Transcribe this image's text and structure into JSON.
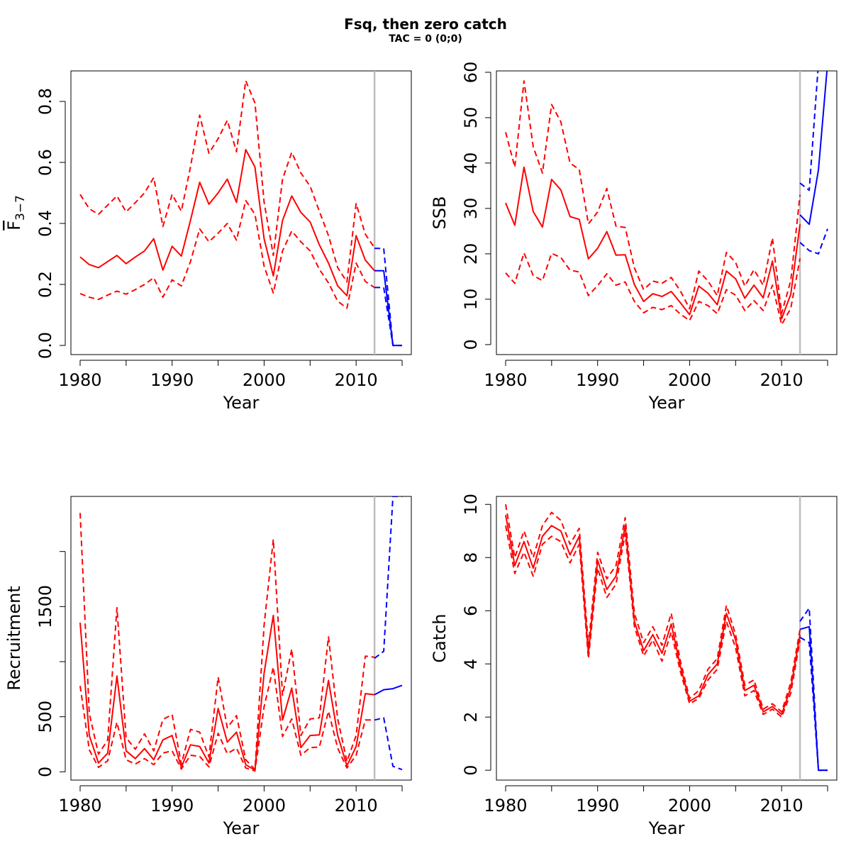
{
  "figure": {
    "title": "Fsq, then zero catch",
    "subtitle": "TAC = 0 (0;0)"
  },
  "colors": {
    "historic": "#ff0000",
    "forecast": "#0000ff",
    "assessment_line": "#bebebe"
  },
  "chart_data": [
    {
      "id": "fbar",
      "type": "line",
      "xlabel": "Year",
      "ylabel": "F3-7",
      "ylabel_main": "F",
      "ylabel_sub": "3−7",
      "xlim": [
        1979,
        2016
      ],
      "ylim": [
        -0.03,
        0.9
      ],
      "xticks": [
        1980,
        1990,
        2000,
        2010
      ],
      "xminor": [
        1985,
        1995,
        2005,
        2015
      ],
      "yticks": [
        0.0,
        0.2,
        0.4,
        0.6,
        0.8
      ],
      "ytick_labels": [
        "0.0",
        "0.2",
        "0.4",
        "0.6",
        "0.8"
      ],
      "vline": 2012,
      "historic": {
        "x": [
          1980,
          1981,
          1982,
          1983,
          1984,
          1985,
          1986,
          1987,
          1988,
          1989,
          1990,
          1991,
          1992,
          1993,
          1994,
          1995,
          1996,
          1997,
          1998,
          1999,
          2000,
          2001,
          2002,
          2003,
          2004,
          2005,
          2006,
          2007,
          2008,
          2009,
          2010,
          2011,
          2012
        ],
        "est": [
          0.29,
          0.265,
          0.255,
          0.275,
          0.295,
          0.268,
          0.29,
          0.31,
          0.35,
          0.247,
          0.325,
          0.293,
          0.41,
          0.535,
          0.463,
          0.5,
          0.545,
          0.469,
          0.642,
          0.585,
          0.35,
          0.228,
          0.41,
          0.49,
          0.436,
          0.405,
          0.33,
          0.27,
          0.195,
          0.163,
          0.36,
          0.28,
          0.245
        ],
        "low": [
          0.17,
          0.158,
          0.151,
          0.165,
          0.178,
          0.168,
          0.183,
          0.2,
          0.222,
          0.158,
          0.215,
          0.195,
          0.275,
          0.382,
          0.34,
          0.368,
          0.4,
          0.345,
          0.475,
          0.43,
          0.26,
          0.172,
          0.31,
          0.375,
          0.34,
          0.31,
          0.25,
          0.205,
          0.145,
          0.122,
          0.27,
          0.21,
          0.19
        ],
        "high": [
          0.495,
          0.448,
          0.43,
          0.46,
          0.49,
          0.438,
          0.468,
          0.5,
          0.55,
          0.39,
          0.495,
          0.44,
          0.585,
          0.755,
          0.63,
          0.678,
          0.738,
          0.635,
          0.868,
          0.795,
          0.47,
          0.295,
          0.545,
          0.633,
          0.565,
          0.522,
          0.44,
          0.36,
          0.255,
          0.208,
          0.465,
          0.365,
          0.32
        ]
      },
      "forecast": {
        "x": [
          2012,
          2013,
          2014,
          2015
        ],
        "est": [
          0.245,
          0.245,
          0.0,
          0.0
        ],
        "low": [
          0.19,
          0.19,
          0.0,
          0.0
        ],
        "high": [
          0.318,
          0.318,
          0.0,
          0.0
        ]
      }
    },
    {
      "id": "ssb",
      "type": "line",
      "xlabel": "Year",
      "ylabel": "SSB",
      "xlim": [
        1979,
        2016
      ],
      "ylim": [
        -2.2,
        60.3
      ],
      "xticks": [
        1980,
        1990,
        2000,
        2010
      ],
      "xminor": [
        1985,
        1995,
        2005,
        2015
      ],
      "yticks": [
        0,
        10,
        20,
        30,
        40,
        50,
        60
      ],
      "ytick_labels": [
        "0",
        "10",
        "20",
        "30",
        "40",
        "50",
        "60"
      ],
      "vline": 2012,
      "historic": {
        "x": [
          1980,
          1981,
          1982,
          1983,
          1984,
          1985,
          1986,
          1987,
          1988,
          1989,
          1990,
          1991,
          1992,
          1993,
          1994,
          1995,
          1996,
          1997,
          1998,
          1999,
          2000,
          2001,
          2002,
          2003,
          2004,
          2005,
          2006,
          2007,
          2008,
          2009,
          2010,
          2011,
          2012
        ],
        "est": [
          31.2,
          26.3,
          39.1,
          29.3,
          25.9,
          36.4,
          34.1,
          28.2,
          27.6,
          18.9,
          21.2,
          24.9,
          19.7,
          19.8,
          13.2,
          9.5,
          11.2,
          10.6,
          11.7,
          9.2,
          6.6,
          12.9,
          11.3,
          8.8,
          16.2,
          14.5,
          10.2,
          13.1,
          10.3,
          18.4,
          5.7,
          11.1,
          26.5
        ],
        "low": [
          15.8,
          13.5,
          20.2,
          15.2,
          14.1,
          20.1,
          19.2,
          16.4,
          16.0,
          10.8,
          13.0,
          15.6,
          13.1,
          13.8,
          9.5,
          7.0,
          8.2,
          7.7,
          8.6,
          6.7,
          5.3,
          9.5,
          8.6,
          6.8,
          12.1,
          10.9,
          7.5,
          9.7,
          7.5,
          13.1,
          4.4,
          8.0,
          19.0
        ],
        "high": [
          46.8,
          39.1,
          58.1,
          43.6,
          37.8,
          52.9,
          49.1,
          40.0,
          38.6,
          26.6,
          29.2,
          34.4,
          26.1,
          25.8,
          16.9,
          12.1,
          14.0,
          13.5,
          14.8,
          11.8,
          7.9,
          16.2,
          14.0,
          10.8,
          20.3,
          18.1,
          12.9,
          16.5,
          13.1,
          23.5,
          6.9,
          14.1,
          33.0
        ]
      },
      "forecast": {
        "x": [
          2012,
          2013,
          2014,
          2015
        ],
        "est": [
          28.6,
          26.5,
          38.5,
          62.0
        ],
        "low": [
          22.5,
          20.7,
          20.0,
          25.5
        ],
        "high": [
          35.6,
          34.0,
          62.0,
          62.0
        ]
      }
    },
    {
      "id": "recruitment",
      "type": "line",
      "xlabel": "Year",
      "ylabel": "Recruitment",
      "xlim": [
        1979,
        2016
      ],
      "ylim": [
        -75,
        2500
      ],
      "xticks": [
        1980,
        1990,
        2000,
        2010
      ],
      "xminor": [
        1985,
        1995,
        2005,
        2015
      ],
      "yticks": [
        0,
        500,
        1000,
        1500,
        2000
      ],
      "ytick_labels": [
        "0",
        "500",
        "",
        "1500",
        ""
      ],
      "vline": 2012,
      "historic": {
        "x": [
          1980,
          1981,
          1982,
          1983,
          1984,
          1985,
          1986,
          1987,
          1988,
          1989,
          1990,
          1991,
          1992,
          1993,
          1994,
          1995,
          1996,
          1997,
          1998,
          1999,
          2000,
          2001,
          2002,
          2003,
          2004,
          2005,
          2006,
          2007,
          2008,
          2009,
          2010,
          2011,
          2012
        ],
        "est": [
          1355,
          330,
          80,
          170,
          870,
          190,
          120,
          210,
          110,
          290,
          330,
          40,
          245,
          230,
          80,
          575,
          270,
          360,
          65,
          15,
          895,
          1420,
          470,
          760,
          220,
          330,
          335,
          830,
          330,
          55,
          230,
          710,
          700
        ],
        "low": [
          780,
          200,
          40,
          100,
          450,
          110,
          70,
          120,
          65,
          170,
          190,
          25,
          150,
          140,
          45,
          350,
          165,
          215,
          35,
          8,
          590,
          950,
          320,
          480,
          150,
          220,
          225,
          550,
          215,
          35,
          150,
          470,
          470
        ],
        "high": [
          2350,
          530,
          160,
          290,
          1490,
          310,
          205,
          345,
          190,
          475,
          520,
          70,
          385,
          360,
          135,
          860,
          400,
          510,
          110,
          20,
          1330,
          2110,
          695,
          1115,
          330,
          480,
          490,
          1225,
          480,
          95,
          330,
          1050,
          1040
        ]
      },
      "forecast": {
        "x": [
          2012,
          2013,
          2014,
          2015
        ],
        "est": [
          700,
          745,
          755,
          785
        ],
        "low": [
          470,
          490,
          50,
          20
        ],
        "high": [
          1030,
          1095,
          2500,
          2500
        ]
      }
    },
    {
      "id": "catch",
      "type": "line",
      "xlabel": "Year",
      "ylabel": "Catch",
      "xlim": [
        1979,
        2016
      ],
      "ylim": [
        -0.37,
        10.3
      ],
      "xticks": [
        1980,
        1990,
        2000,
        2010
      ],
      "xminor": [
        1985,
        1995,
        2005,
        2015
      ],
      "yticks": [
        0,
        2,
        4,
        6,
        8,
        10
      ],
      "ytick_labels": [
        "0",
        "2",
        "4",
        "6",
        "8",
        "10"
      ],
      "vline": 2012,
      "historic": {
        "x": [
          1980,
          1981,
          1982,
          1983,
          1984,
          1985,
          1986,
          1987,
          1988,
          1989,
          1990,
          1991,
          1992,
          1993,
          1994,
          1995,
          1996,
          1997,
          1998,
          1999,
          2000,
          2001,
          2002,
          2003,
          2004,
          2005,
          2006,
          2007,
          2008,
          2009,
          2010,
          2011,
          2012
        ],
        "est": [
          9.6,
          7.7,
          8.6,
          7.6,
          8.8,
          9.2,
          9.0,
          8.1,
          8.8,
          4.4,
          7.9,
          6.8,
          7.3,
          9.2,
          5.6,
          4.5,
          5.1,
          4.4,
          5.5,
          3.9,
          2.6,
          2.8,
          3.6,
          4.0,
          5.9,
          4.9,
          3.0,
          3.2,
          2.2,
          2.4,
          2.1,
          3.1,
          5.1
        ],
        "low": [
          9.2,
          7.4,
          8.2,
          7.3,
          8.5,
          8.8,
          8.6,
          7.8,
          8.5,
          4.2,
          7.6,
          6.5,
          7.0,
          8.9,
          5.4,
          4.3,
          4.9,
          4.1,
          5.2,
          3.7,
          2.5,
          2.7,
          3.4,
          3.8,
          5.6,
          4.6,
          2.8,
          3.0,
          2.1,
          2.3,
          2.0,
          2.9,
          4.9
        ],
        "high": [
          10.0,
          8.0,
          9.0,
          8.0,
          9.2,
          9.7,
          9.4,
          8.5,
          9.1,
          4.7,
          8.2,
          7.2,
          7.7,
          9.5,
          5.9,
          4.8,
          5.4,
          4.7,
          5.9,
          4.1,
          2.7,
          3.0,
          3.8,
          4.2,
          6.2,
          5.1,
          3.2,
          3.4,
          2.3,
          2.5,
          2.2,
          3.3,
          5.3
        ]
      },
      "forecast": {
        "x": [
          2012,
          2013,
          2014,
          2015
        ],
        "est": [
          5.3,
          5.4,
          0.0,
          0.0
        ],
        "low": [
          5.0,
          4.8,
          0.0,
          0.0
        ],
        "high": [
          5.6,
          6.1,
          0.0,
          0.0
        ]
      }
    }
  ]
}
